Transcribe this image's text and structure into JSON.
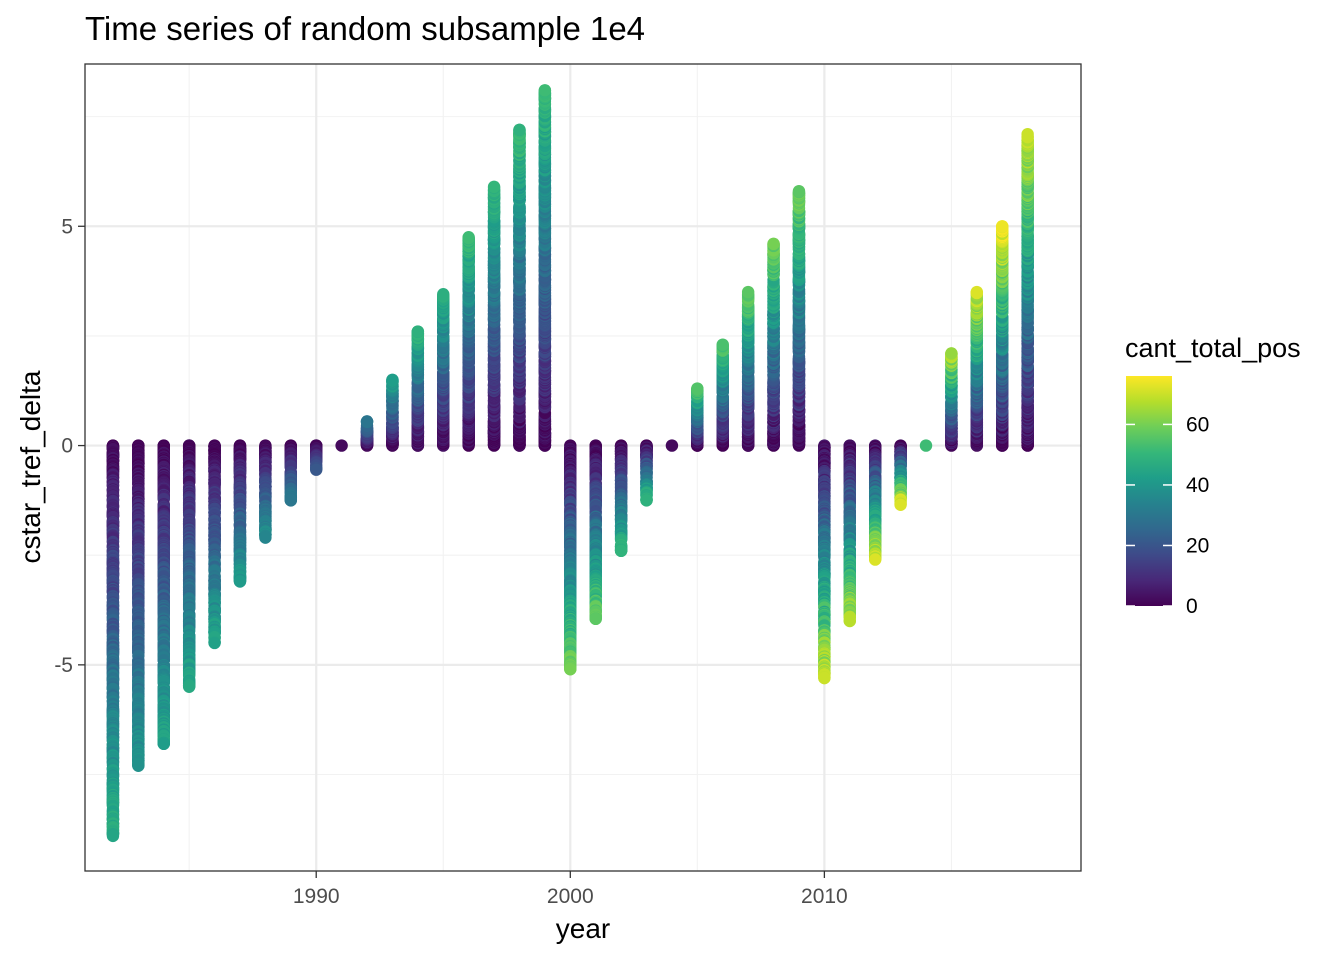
{
  "chart_data": {
    "type": "scatter",
    "title": "Time series of random subsample 1e4",
    "xlabel": "year",
    "ylabel": "cstar_tref_delta",
    "xlim": [
      1980.9,
      2020.1
    ],
    "ylim": [
      -9.7,
      8.7
    ],
    "x_ticks": [
      1990,
      2000,
      2010
    ],
    "x_tick_labels": [
      "1990",
      "2000",
      "2010"
    ],
    "y_ticks": [
      -5,
      0,
      5
    ],
    "y_tick_labels": [
      "-5",
      "0",
      "5"
    ],
    "grid": true,
    "legend": {
      "title": "cant_total_pos",
      "placement": "right",
      "min": 0,
      "max": 76,
      "ticks": [
        0,
        20,
        40,
        60
      ],
      "tick_labels": [
        "0",
        "20",
        "40",
        "60"
      ],
      "colormap": [
        "#440154",
        "#482878",
        "#3e4a89",
        "#31688e",
        "#26828e",
        "#1f9e89",
        "#35b779",
        "#6ece58",
        "#b5de2b",
        "#fde725"
      ]
    },
    "columns": [
      {
        "year": 1982,
        "min": -8.9,
        "max": 0,
        "cmax": 48
      },
      {
        "year": 1983,
        "min": -7.3,
        "max": 0,
        "cmax": 40
      },
      {
        "year": 1984,
        "min": -6.8,
        "max": 0,
        "cmax": 45
      },
      {
        "year": 1985,
        "min": -5.5,
        "max": 0,
        "cmax": 46
      },
      {
        "year": 1986,
        "min": -4.5,
        "max": 0,
        "cmax": 45
      },
      {
        "year": 1987,
        "min": -3.1,
        "max": 0,
        "cmax": 42
      },
      {
        "year": 1988,
        "min": -2.1,
        "max": 0,
        "cmax": 38
      },
      {
        "year": 1989,
        "min": -1.25,
        "max": 0,
        "cmax": 32
      },
      {
        "year": 1990,
        "min": -0.55,
        "max": 0,
        "cmax": 22
      },
      {
        "year": 1991,
        "min": 0,
        "max": 0,
        "cmax": 2
      },
      {
        "year": 1992,
        "min": 0,
        "max": 0.55,
        "cmax": 32
      },
      {
        "year": 1993,
        "min": 0,
        "max": 1.5,
        "cmax": 44
      },
      {
        "year": 1994,
        "min": 0,
        "max": 2.6,
        "cmax": 50
      },
      {
        "year": 1995,
        "min": 0,
        "max": 3.45,
        "cmax": 48
      },
      {
        "year": 1996,
        "min": 0,
        "max": 4.75,
        "cmax": 52
      },
      {
        "year": 1997,
        "min": 0,
        "max": 5.9,
        "cmax": 50
      },
      {
        "year": 1998,
        "min": 0,
        "max": 7.2,
        "cmax": 52
      },
      {
        "year": 1999,
        "min": 0,
        "max": 8.1,
        "cmax": 52
      },
      {
        "year": 2000,
        "min": -5.1,
        "max": 0,
        "cmax": 60
      },
      {
        "year": 2001,
        "min": -3.95,
        "max": 0,
        "cmax": 58
      },
      {
        "year": 2002,
        "min": -2.4,
        "max": 0,
        "cmax": 50
      },
      {
        "year": 2003,
        "min": -1.25,
        "max": 0,
        "cmax": 50
      },
      {
        "year": 2004,
        "min": 0,
        "max": 0,
        "cmax": 2
      },
      {
        "year": 2005,
        "min": 0,
        "max": 1.3,
        "cmax": 56
      },
      {
        "year": 2006,
        "min": 0,
        "max": 2.3,
        "cmax": 56
      },
      {
        "year": 2007,
        "min": 0,
        "max": 3.5,
        "cmax": 58
      },
      {
        "year": 2008,
        "min": 0,
        "max": 4.6,
        "cmax": 60
      },
      {
        "year": 2009,
        "min": 0,
        "max": 5.8,
        "cmax": 60
      },
      {
        "year": 2010,
        "min": -5.3,
        "max": 0,
        "cmax": 70
      },
      {
        "year": 2011,
        "min": -4.0,
        "max": 0,
        "cmax": 68
      },
      {
        "year": 2012,
        "min": -2.6,
        "max": 0,
        "cmax": 72
      },
      {
        "year": 2013,
        "min": -1.35,
        "max": 0,
        "cmax": 72
      },
      {
        "year": 2014,
        "min": 0,
        "max": 0,
        "cmax": 52
      },
      {
        "year": 2015,
        "min": 0,
        "max": 2.1,
        "cmax": 68
      },
      {
        "year": 2016,
        "min": 0,
        "max": 3.5,
        "cmax": 72
      },
      {
        "year": 2017,
        "min": 0,
        "max": 5.0,
        "cmax": 76
      },
      {
        "year": 2018,
        "min": 0,
        "max": 7.1,
        "cmax": 70
      }
    ]
  }
}
